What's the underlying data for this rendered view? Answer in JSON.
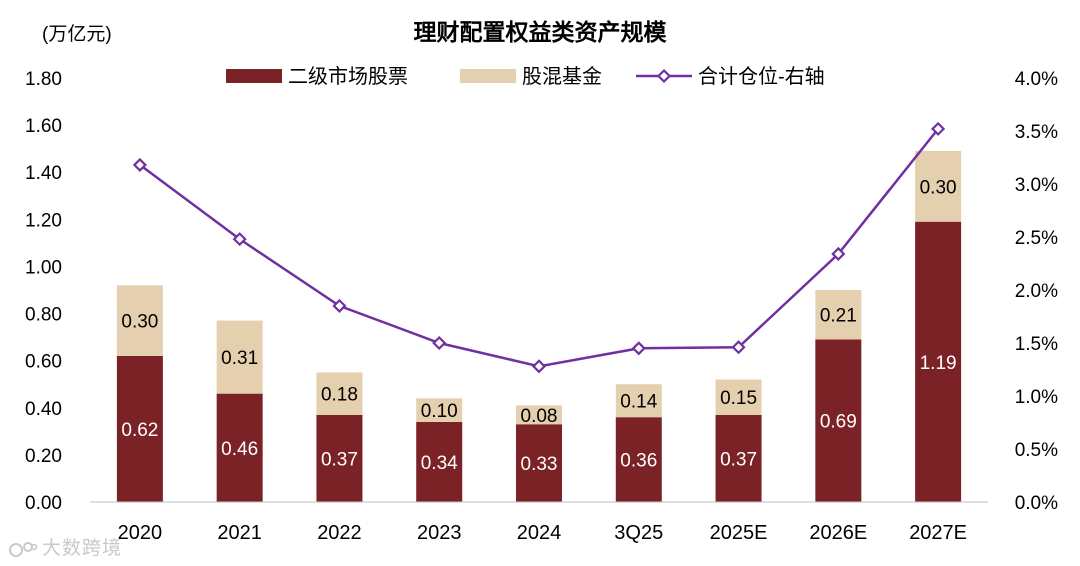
{
  "chart_data": {
    "type": "bar",
    "stacked": true,
    "title": "理财配置权益类资产规模",
    "ylabel": "(万亿元)",
    "ylim": [
      0,
      1.8
    ],
    "yticks": [
      "0.00",
      "0.20",
      "0.40",
      "0.60",
      "0.80",
      "1.00",
      "1.20",
      "1.40",
      "1.60",
      "1.80"
    ],
    "y2lim": [
      0,
      4.0
    ],
    "y2ticks": [
      "0.0%",
      "0.5%",
      "1.0%",
      "1.5%",
      "2.0%",
      "2.5%",
      "3.0%",
      "3.5%",
      "4.0%"
    ],
    "categories": [
      "2020",
      "2021",
      "2022",
      "2023",
      "2024",
      "3Q25",
      "2025E",
      "2026E",
      "2027E"
    ],
    "series": [
      {
        "name": "二级市场股票",
        "kind": "bar",
        "axis": "left",
        "color": "#7b2226",
        "values": [
          0.62,
          0.46,
          0.37,
          0.34,
          0.33,
          0.36,
          0.37,
          0.69,
          1.19
        ],
        "labels": [
          "0.62",
          "0.46",
          "0.37",
          "0.34",
          "0.33",
          "0.36",
          "0.37",
          "0.69",
          "1.19"
        ]
      },
      {
        "name": "股混基金",
        "kind": "bar",
        "axis": "left",
        "color": "#e4cfae",
        "values": [
          0.3,
          0.31,
          0.18,
          0.1,
          0.08,
          0.14,
          0.15,
          0.21,
          0.3
        ],
        "labels": [
          "0.30",
          "0.31",
          "0.18",
          "0.10",
          "0.08",
          "0.14",
          "0.15",
          "0.21",
          "0.30"
        ]
      },
      {
        "name": "合计仓位-右轴",
        "kind": "line",
        "axis": "right",
        "color": "#7030a0",
        "values": [
          3.18,
          2.48,
          1.85,
          1.5,
          1.28,
          1.45,
          1.46,
          2.34,
          3.52
        ]
      }
    ],
    "legend_position": "top-center"
  },
  "watermark": "大数跨境"
}
